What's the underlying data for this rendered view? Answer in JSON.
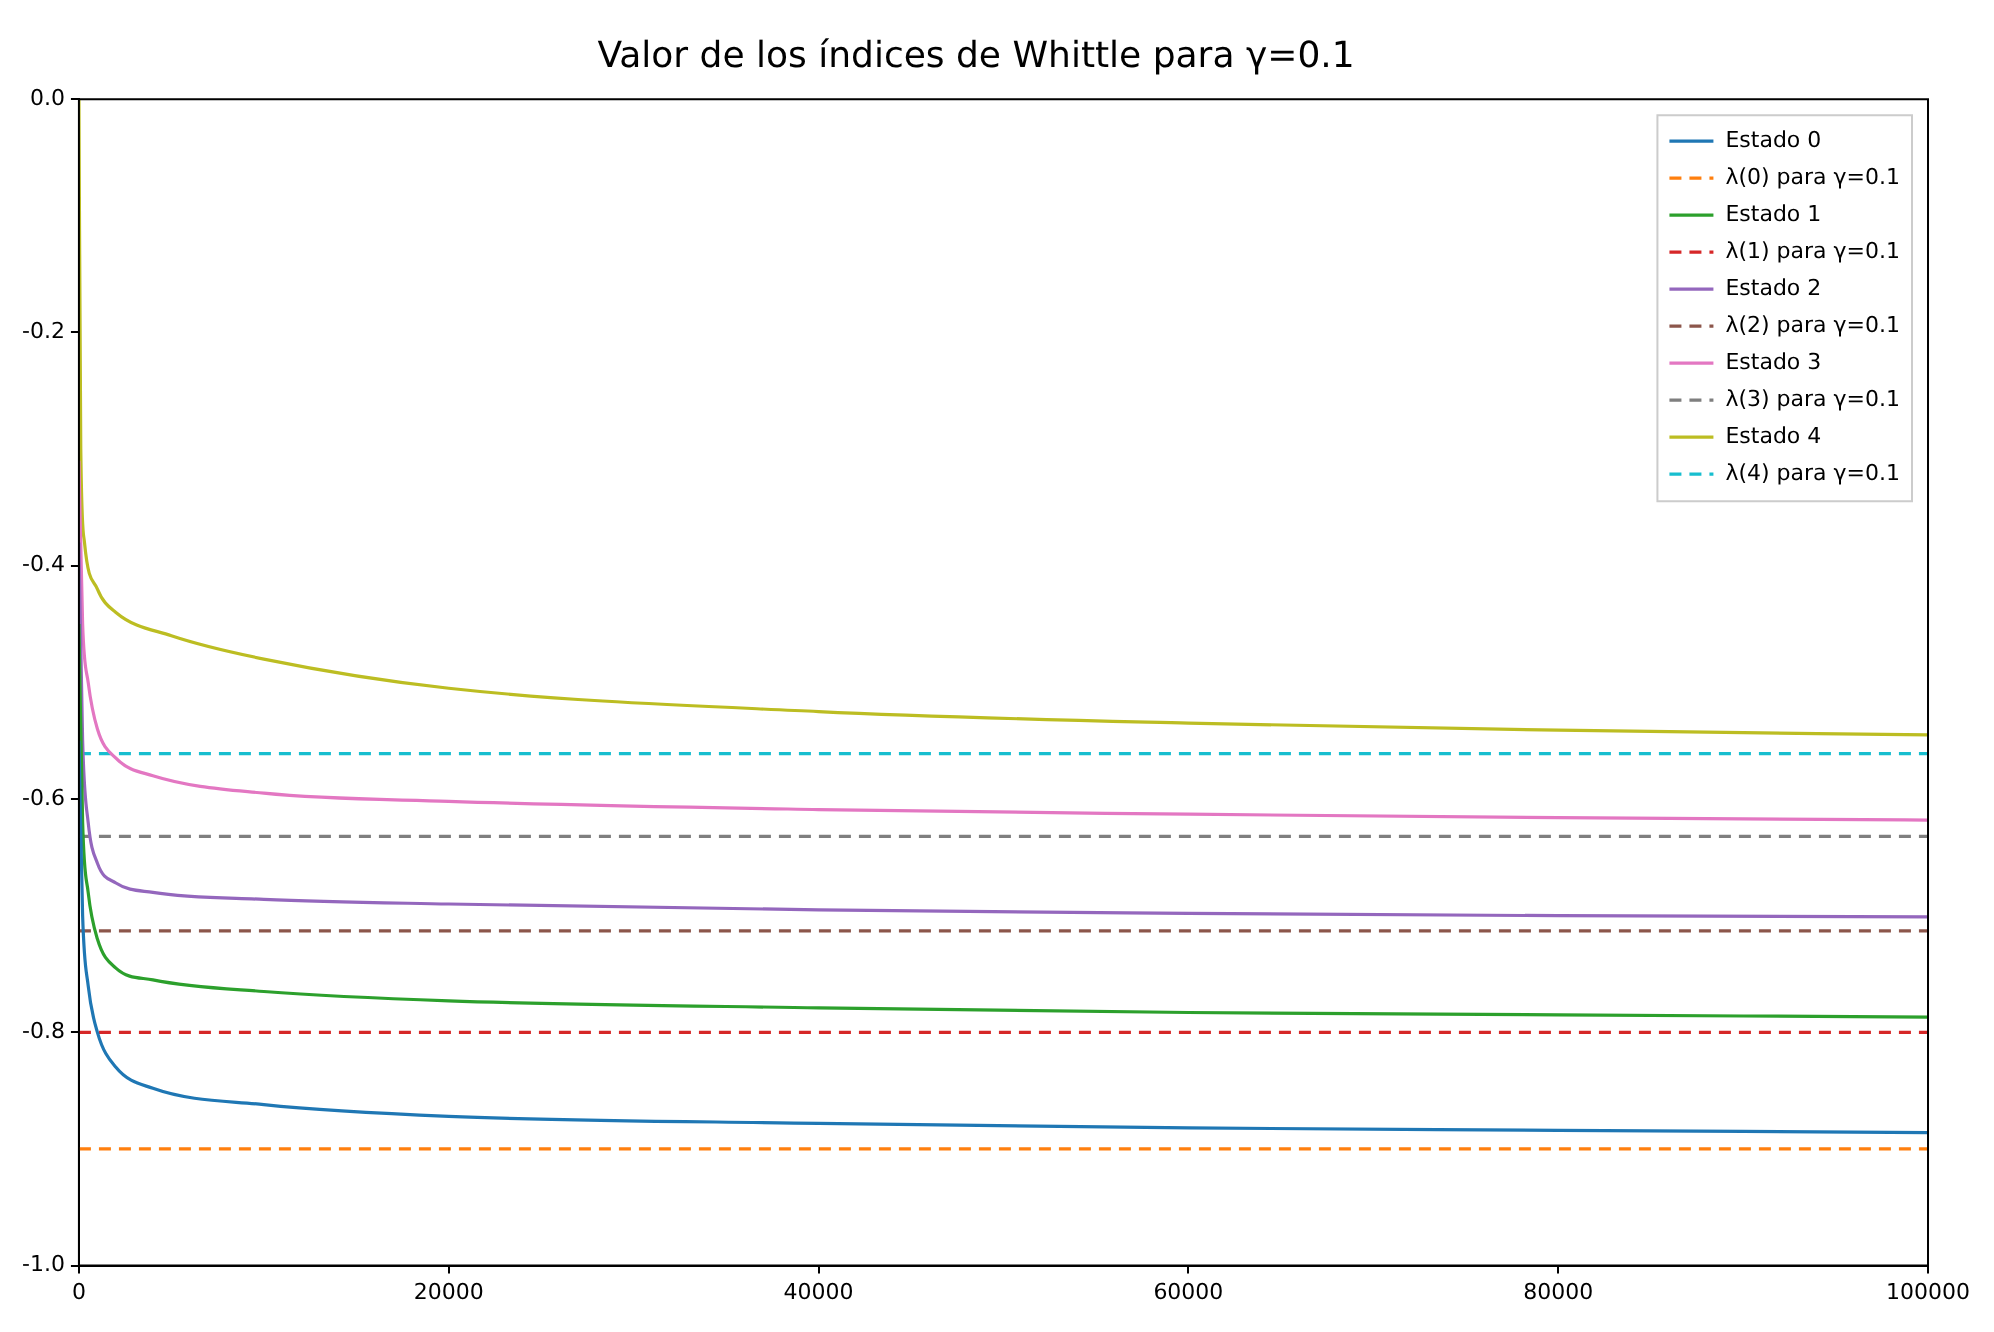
{
  "chart_data": {
    "type": "line",
    "title": "Valor de los índices de Whittle para γ=0.1",
    "xlim": [
      0,
      100000
    ],
    "xticks": [
      0,
      20000,
      40000,
      60000,
      80000,
      100000
    ],
    "ylim": [
      -1.0,
      0.0
    ],
    "yticks": [
      {
        "value": -1.0,
        "label": "-1.0"
      },
      {
        "value": -0.8,
        "label": "-0.8"
      },
      {
        "value": -0.6,
        "label": "-0.6"
      },
      {
        "value": -0.4,
        "label": "-0.4"
      },
      {
        "value": -0.2,
        "label": "-0.2"
      },
      {
        "value": 0.0,
        "label": "0.0"
      }
    ],
    "grid": false,
    "legend": "top right",
    "marker": "none",
    "series": [
      {
        "name": "Estado 0",
        "color": "#1f77b4",
        "line_style": "solid",
        "x": [
          0,
          200,
          500,
          1000,
          2000,
          4000,
          10000,
          20000,
          40000,
          60000,
          80000,
          100000
        ],
        "values": [
          -0.55,
          -0.7,
          -0.76,
          -0.8,
          -0.83,
          -0.848,
          -0.862,
          -0.872,
          -0.878,
          -0.882,
          -0.884,
          -0.886
        ]
      },
      {
        "name": "λ(0) para γ=0.1",
        "color": "#ff7f0e",
        "line_style": "dashed",
        "x": [
          0,
          100000
        ],
        "values": [
          -0.9,
          -0.9
        ]
      },
      {
        "name": "Estado 1",
        "color": "#2ca02c",
        "line_style": "solid",
        "x": [
          0,
          200,
          500,
          1000,
          2000,
          4000,
          10000,
          20000,
          40000,
          60000,
          80000,
          100000
        ],
        "values": [
          -0.45,
          -0.62,
          -0.68,
          -0.72,
          -0.745,
          -0.755,
          -0.765,
          -0.773,
          -0.779,
          -0.783,
          -0.785,
          -0.787
        ]
      },
      {
        "name": "λ(1) para γ=0.1",
        "color": "#d62728",
        "line_style": "dashed",
        "x": [
          0,
          100000
        ],
        "values": [
          -0.8,
          -0.8
        ]
      },
      {
        "name": "Estado 2",
        "color": "#9467bd",
        "line_style": "solid",
        "x": [
          0,
          200,
          500,
          1000,
          2000,
          4000,
          10000,
          20000,
          40000,
          60000,
          80000,
          100000
        ],
        "values": [
          -0.38,
          -0.55,
          -0.62,
          -0.655,
          -0.672,
          -0.68,
          -0.686,
          -0.69,
          -0.695,
          -0.698,
          -0.7,
          -0.701
        ]
      },
      {
        "name": "λ(2) para γ=0.1",
        "color": "#8c564b",
        "line_style": "dashed",
        "x": [
          0,
          100000
        ],
        "values": [
          -0.713,
          -0.713
        ]
      },
      {
        "name": "Estado 3",
        "color": "#e377c2",
        "line_style": "solid",
        "x": [
          0,
          200,
          500,
          1000,
          2000,
          4000,
          10000,
          20000,
          40000,
          60000,
          80000,
          100000
        ],
        "values": [
          -0.31,
          -0.45,
          -0.5,
          -0.54,
          -0.565,
          -0.58,
          -0.595,
          -0.602,
          -0.609,
          -0.613,
          -0.616,
          -0.618
        ]
      },
      {
        "name": "λ(3) para γ=0.1",
        "color": "#7f7f7f",
        "line_style": "dashed",
        "x": [
          0,
          100000
        ],
        "values": [
          -0.632,
          -0.632
        ]
      },
      {
        "name": "Estado 4",
        "color": "#bcbd22",
        "line_style": "solid",
        "x": [
          0,
          100,
          300,
          1000,
          2000,
          5000,
          10000,
          20000,
          40000,
          60000,
          80000,
          100000
        ],
        "values": [
          0.0,
          -0.3,
          -0.38,
          -0.42,
          -0.44,
          -0.46,
          -0.48,
          -0.505,
          -0.525,
          -0.535,
          -0.541,
          -0.545
        ]
      },
      {
        "name": "λ(4) para γ=0.1",
        "color": "#17becf",
        "line_style": "dashed",
        "x": [
          0,
          100000
        ],
        "values": [
          -0.561,
          -0.561
        ]
      }
    ]
  }
}
